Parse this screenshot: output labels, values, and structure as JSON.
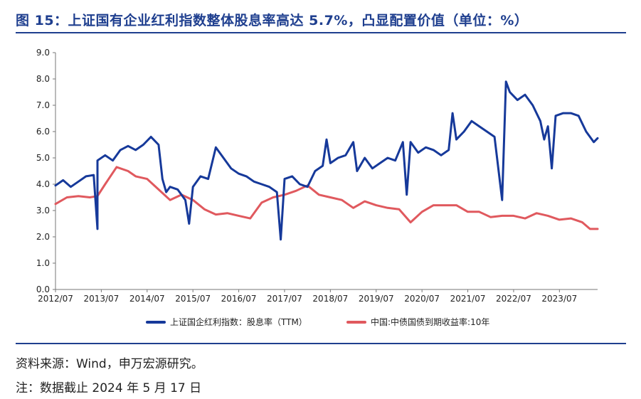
{
  "title": "图 15：上证国有企业红利指数整体股息率高达 5.7%，凸显配置价值（单位：%）",
  "source": "资料来源：Wind，申万宏源研究。",
  "note": "注：数据截止 2024 年 5 月 17 日",
  "colors": {
    "accent": "#1F3F8F",
    "series1": "#16399A",
    "series2": "#E0595E"
  },
  "chart_data": {
    "type": "line",
    "xlabel": "",
    "ylabel": "",
    "ylim": [
      0,
      9
    ],
    "yticks": [
      "0.0",
      "1.0",
      "2.0",
      "3.0",
      "4.0",
      "5.0",
      "6.0",
      "7.0",
      "8.0",
      "9.0"
    ],
    "xlim": [
      "2012-07",
      "2024-05"
    ],
    "xticks": [
      "2012/07",
      "2013/07",
      "2014/07",
      "2015/07",
      "2016/07",
      "2017/07",
      "2018/07",
      "2019/07",
      "2020/07",
      "2021/07",
      "2022/07",
      "2023/07"
    ],
    "grid": false,
    "legend": "bottom",
    "series": [
      {
        "name": "上证国企红利指数：股息率（TTM）",
        "color": "#16399A",
        "points": [
          [
            "2012-07",
            3.95
          ],
          [
            "2012-09",
            4.15
          ],
          [
            "2012-11",
            3.9
          ],
          [
            "2013-01",
            4.1
          ],
          [
            "2013-03",
            4.3
          ],
          [
            "2013-05",
            4.35
          ],
          [
            "2013-06",
            2.3
          ],
          [
            "2013-06",
            4.9
          ],
          [
            "2013-08",
            5.1
          ],
          [
            "2013-10",
            4.9
          ],
          [
            "2013-12",
            5.3
          ],
          [
            "2014-02",
            5.45
          ],
          [
            "2014-04",
            5.3
          ],
          [
            "2014-06",
            5.5
          ],
          [
            "2014-08",
            5.8
          ],
          [
            "2014-10",
            5.5
          ],
          [
            "2014-11",
            4.2
          ],
          [
            "2014-12",
            3.7
          ],
          [
            "2015-01",
            3.9
          ],
          [
            "2015-03",
            3.8
          ],
          [
            "2015-05",
            3.4
          ],
          [
            "2015-06",
            2.5
          ],
          [
            "2015-07",
            3.9
          ],
          [
            "2015-09",
            4.3
          ],
          [
            "2015-11",
            4.2
          ],
          [
            "2016-01",
            5.4
          ],
          [
            "2016-03",
            5.0
          ],
          [
            "2016-05",
            4.6
          ],
          [
            "2016-07",
            4.4
          ],
          [
            "2016-09",
            4.3
          ],
          [
            "2016-11",
            4.1
          ],
          [
            "2017-01",
            4.0
          ],
          [
            "2017-03",
            3.9
          ],
          [
            "2017-05",
            3.7
          ],
          [
            "2017-06",
            1.9
          ],
          [
            "2017-07",
            4.2
          ],
          [
            "2017-09",
            4.3
          ],
          [
            "2017-11",
            4.0
          ],
          [
            "2018-01",
            3.9
          ],
          [
            "2018-03",
            4.5
          ],
          [
            "2018-05",
            4.7
          ],
          [
            "2018-06",
            5.7
          ],
          [
            "2018-07",
            4.8
          ],
          [
            "2018-09",
            5.0
          ],
          [
            "2018-11",
            5.1
          ],
          [
            "2019-01",
            5.6
          ],
          [
            "2019-02",
            4.5
          ],
          [
            "2019-04",
            5.0
          ],
          [
            "2019-06",
            4.6
          ],
          [
            "2019-08",
            4.8
          ],
          [
            "2019-10",
            5.0
          ],
          [
            "2019-12",
            4.9
          ],
          [
            "2020-02",
            5.6
          ],
          [
            "2020-03",
            3.6
          ],
          [
            "2020-04",
            5.6
          ],
          [
            "2020-06",
            5.2
          ],
          [
            "2020-08",
            5.4
          ],
          [
            "2020-10",
            5.3
          ],
          [
            "2020-12",
            5.1
          ],
          [
            "2021-02",
            5.3
          ],
          [
            "2021-03",
            6.7
          ],
          [
            "2021-04",
            5.7
          ],
          [
            "2021-06",
            6.0
          ],
          [
            "2021-08",
            6.4
          ],
          [
            "2021-10",
            6.2
          ],
          [
            "2021-12",
            6.0
          ],
          [
            "2022-02",
            5.8
          ],
          [
            "2022-04",
            3.4
          ],
          [
            "2022-05",
            7.9
          ],
          [
            "2022-06",
            7.5
          ],
          [
            "2022-08",
            7.2
          ],
          [
            "2022-10",
            7.4
          ],
          [
            "2022-12",
            7.0
          ],
          [
            "2023-02",
            6.4
          ],
          [
            "2023-03",
            5.7
          ],
          [
            "2023-04",
            6.2
          ],
          [
            "2023-05",
            4.6
          ],
          [
            "2023-06",
            6.6
          ],
          [
            "2023-08",
            6.7
          ],
          [
            "2023-10",
            6.7
          ],
          [
            "2023-12",
            6.6
          ],
          [
            "2024-02",
            6.0
          ],
          [
            "2024-04",
            5.6
          ],
          [
            "2024-05",
            5.75
          ]
        ]
      },
      {
        "name": "中国:中债国债到期收益率:10年",
        "color": "#E0595E",
        "points": [
          [
            "2012-07",
            3.25
          ],
          [
            "2012-10",
            3.5
          ],
          [
            "2013-01",
            3.55
          ],
          [
            "2013-04",
            3.5
          ],
          [
            "2013-06",
            3.55
          ],
          [
            "2013-08",
            4.0
          ],
          [
            "2013-11",
            4.65
          ],
          [
            "2014-02",
            4.5
          ],
          [
            "2014-04",
            4.3
          ],
          [
            "2014-07",
            4.2
          ],
          [
            "2014-10",
            3.8
          ],
          [
            "2015-01",
            3.4
          ],
          [
            "2015-04",
            3.6
          ],
          [
            "2015-07",
            3.4
          ],
          [
            "2015-10",
            3.05
          ],
          [
            "2016-01",
            2.85
          ],
          [
            "2016-04",
            2.9
          ],
          [
            "2016-07",
            2.8
          ],
          [
            "2016-10",
            2.7
          ],
          [
            "2017-01",
            3.3
          ],
          [
            "2017-04",
            3.5
          ],
          [
            "2017-07",
            3.6
          ],
          [
            "2017-10",
            3.75
          ],
          [
            "2018-01",
            3.95
          ],
          [
            "2018-04",
            3.6
          ],
          [
            "2018-07",
            3.5
          ],
          [
            "2018-10",
            3.4
          ],
          [
            "2019-01",
            3.1
          ],
          [
            "2019-04",
            3.35
          ],
          [
            "2019-07",
            3.2
          ],
          [
            "2019-10",
            3.1
          ],
          [
            "2020-01",
            3.05
          ],
          [
            "2020-04",
            2.55
          ],
          [
            "2020-07",
            2.95
          ],
          [
            "2020-10",
            3.2
          ],
          [
            "2021-01",
            3.2
          ],
          [
            "2021-04",
            3.2
          ],
          [
            "2021-07",
            2.95
          ],
          [
            "2021-10",
            2.95
          ],
          [
            "2022-01",
            2.75
          ],
          [
            "2022-04",
            2.8
          ],
          [
            "2022-07",
            2.8
          ],
          [
            "2022-10",
            2.7
          ],
          [
            "2023-01",
            2.9
          ],
          [
            "2023-04",
            2.8
          ],
          [
            "2023-07",
            2.65
          ],
          [
            "2023-10",
            2.7
          ],
          [
            "2024-01",
            2.55
          ],
          [
            "2024-03",
            2.3
          ],
          [
            "2024-05",
            2.3
          ]
        ]
      }
    ]
  }
}
